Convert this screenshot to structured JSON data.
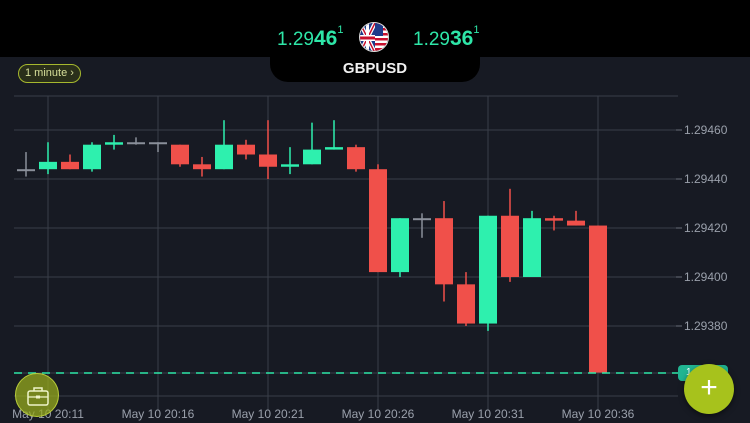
{
  "header": {
    "bid": {
      "prefix": "1.29",
      "big": "46",
      "sup": "1"
    },
    "ask": {
      "prefix": "1.29",
      "big": "36",
      "sup": "1"
    },
    "symbol": "GBPUSD",
    "flag_icon": "gb-us-flag-icon"
  },
  "timeframe": {
    "label": "1 minute ›"
  },
  "y_axis": {
    "ticks": [
      "1.29460",
      "1.29440",
      "1.29420",
      "1.29400",
      "1.29380"
    ]
  },
  "x_axis": {
    "ticks": [
      "May 10 20:11",
      "May 10 20:16",
      "May 10 20:21",
      "May 10 20:26",
      "May 10 20:31",
      "May 10 20:36"
    ]
  },
  "current_price": {
    "label": "1"
  },
  "colors": {
    "up": "#2ef0ae",
    "down": "#f0504a",
    "neutral": "#8a8f9a",
    "accent": "#a7c21c",
    "price_line": "#2ee6a8"
  },
  "buttons": {
    "new_trade": "+",
    "portfolio": "portfolio"
  },
  "chart_data": {
    "type": "candlestick",
    "title": "GBPUSD",
    "timeframe": "1 minute",
    "ylim": [
      1.29355,
      1.29475
    ],
    "x_ticks": [
      "May 10 20:11",
      "May 10 20:16",
      "May 10 20:21",
      "May 10 20:26",
      "May 10 20:31",
      "May 10 20:36"
    ],
    "candles": [
      {
        "t": "20:11",
        "o": 1.29444,
        "h": 1.29451,
        "l": 1.29441,
        "c": 1.29444
      },
      {
        "t": "20:12",
        "o": 1.29444,
        "h": 1.29455,
        "l": 1.29442,
        "c": 1.29447
      },
      {
        "t": "20:13",
        "o": 1.29447,
        "h": 1.2945,
        "l": 1.29444,
        "c": 1.29444
      },
      {
        "t": "20:14",
        "o": 1.29444,
        "h": 1.29455,
        "l": 1.29443,
        "c": 1.29454
      },
      {
        "t": "20:15",
        "o": 1.29454,
        "h": 1.29458,
        "l": 1.29452,
        "c": 1.29455
      },
      {
        "t": "20:16",
        "o": 1.29455,
        "h": 1.29457,
        "l": 1.29454,
        "c": 1.29455
      },
      {
        "t": "20:17",
        "o": 1.29455,
        "h": 1.29455,
        "l": 1.29451,
        "c": 1.29455
      },
      {
        "t": "20:18",
        "o": 1.29454,
        "h": 1.29454,
        "l": 1.29445,
        "c": 1.29446
      },
      {
        "t": "20:19",
        "o": 1.29446,
        "h": 1.29449,
        "l": 1.29441,
        "c": 1.29444
      },
      {
        "t": "20:20",
        "o": 1.29444,
        "h": 1.29464,
        "l": 1.29444,
        "c": 1.29454
      },
      {
        "t": "20:21",
        "o": 1.29454,
        "h": 1.29456,
        "l": 1.29448,
        "c": 1.2945
      },
      {
        "t": "20:22",
        "o": 1.2945,
        "h": 1.29464,
        "l": 1.2944,
        "c": 1.29445
      },
      {
        "t": "20:23",
        "o": 1.29445,
        "h": 1.29453,
        "l": 1.29442,
        "c": 1.29446
      },
      {
        "t": "20:24",
        "o": 1.29446,
        "h": 1.29463,
        "l": 1.29446,
        "c": 1.29452
      },
      {
        "t": "20:25",
        "o": 1.29452,
        "h": 1.29464,
        "l": 1.29452,
        "c": 1.29453
      },
      {
        "t": "20:26",
        "o": 1.29453,
        "h": 1.29454,
        "l": 1.29443,
        "c": 1.29444
      },
      {
        "t": "20:27",
        "o": 1.29444,
        "h": 1.29446,
        "l": 1.29402,
        "c": 1.29402
      },
      {
        "t": "20:28",
        "o": 1.29402,
        "h": 1.29424,
        "l": 1.294,
        "c": 1.29424
      },
      {
        "t": "20:29",
        "o": 1.29424,
        "h": 1.29426,
        "l": 1.29416,
        "c": 1.29424
      },
      {
        "t": "20:30",
        "o": 1.29424,
        "h": 1.29431,
        "l": 1.2939,
        "c": 1.29397
      },
      {
        "t": "20:31",
        "o": 1.29397,
        "h": 1.29402,
        "l": 1.2938,
        "c": 1.29381
      },
      {
        "t": "20:32",
        "o": 1.29381,
        "h": 1.29425,
        "l": 1.29378,
        "c": 1.29425
      },
      {
        "t": "20:33",
        "o": 1.29425,
        "h": 1.29436,
        "l": 1.29398,
        "c": 1.294
      },
      {
        "t": "20:34",
        "o": 1.294,
        "h": 1.29427,
        "l": 1.294,
        "c": 1.29424
      },
      {
        "t": "20:35",
        "o": 1.29424,
        "h": 1.29425,
        "l": 1.29419,
        "c": 1.29423
      },
      {
        "t": "20:36",
        "o": 1.29423,
        "h": 1.29427,
        "l": 1.29421,
        "c": 1.29421
      },
      {
        "t": "20:37",
        "o": 1.29421,
        "h": 1.29421,
        "l": 1.29361,
        "c": 1.29361
      }
    ],
    "current_price": 1.29361,
    "grid": true
  }
}
